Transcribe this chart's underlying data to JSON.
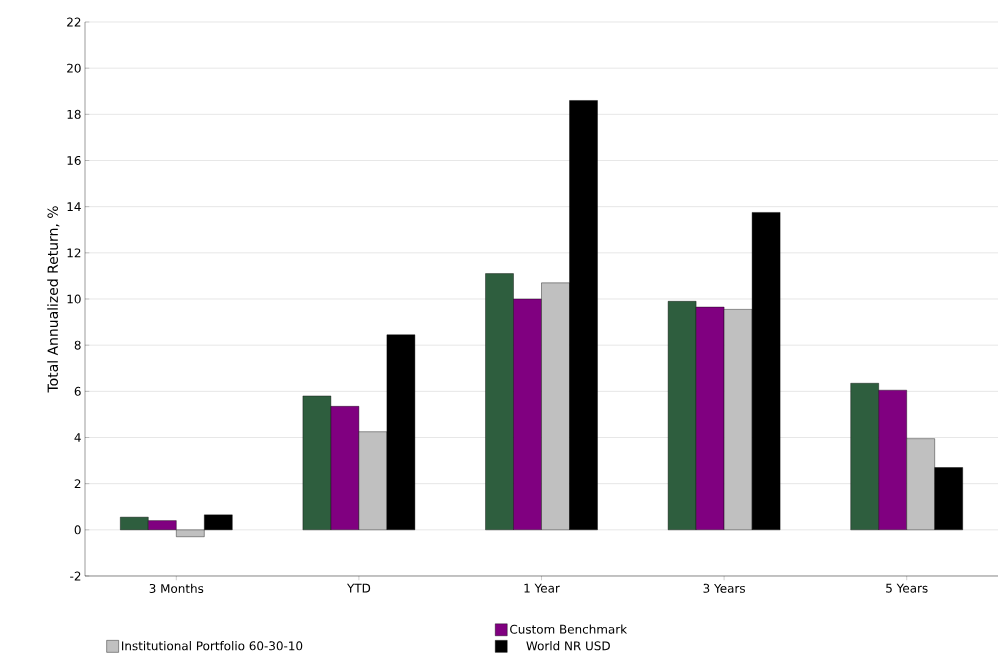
{
  "chart_data": {
    "type": "bar",
    "ylabel": "Total Annualized Return, %",
    "categories": [
      "3 Months",
      "YTD",
      "1 Year",
      "3 Years",
      "5 Years"
    ],
    "series": [
      {
        "color": "#2e5e3e",
        "values": [
          0.55,
          5.8,
          11.1,
          9.9,
          6.35
        ]
      },
      {
        "name": "Custom Benchmark",
        "color": "#800080",
        "values": [
          0.4,
          5.35,
          10.0,
          9.65,
          6.05
        ]
      },
      {
        "name": "Institutional Portfolio 60-30-10",
        "color": "#c0c0c0",
        "values": [
          -0.3,
          4.25,
          10.7,
          9.55,
          3.95
        ]
      },
      {
        "name": "World NR USD",
        "color": "#000000",
        "values": [
          0.65,
          8.45,
          18.6,
          13.75,
          2.7
        ]
      }
    ],
    "ylim": [
      -2,
      22
    ],
    "yticks": [
      -2,
      0,
      2,
      4,
      6,
      8,
      10,
      12,
      14,
      16,
      18,
      20,
      22
    ],
    "grid": "y",
    "legend": "bottom"
  }
}
